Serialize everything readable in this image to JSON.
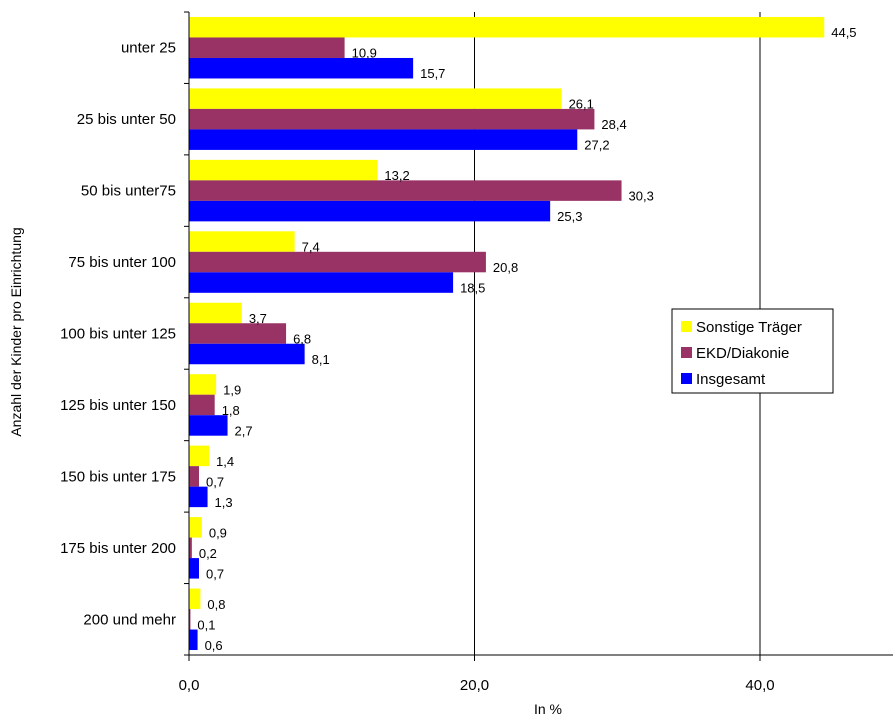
{
  "chart_data": {
    "type": "bar",
    "orientation": "horizontal",
    "categories": [
      "unter 25",
      "25 bis unter 50",
      "50 bis unter75",
      "75 bis unter 100",
      "100 bis unter 125",
      "125 bis unter 150",
      "150 bis unter 175",
      "175 bis unter 200",
      "200 und mehr"
    ],
    "series": [
      {
        "name": "Sonstige Träger",
        "color": "#ffff00",
        "values": [
          44.5,
          26.1,
          13.2,
          7.4,
          3.7,
          1.9,
          1.4,
          0.9,
          0.8
        ],
        "labels": [
          "44,5",
          "26,1",
          "13,2",
          "7,4",
          "3,7",
          "1,9",
          "1,4",
          "0,9",
          "0,8"
        ]
      },
      {
        "name": "EKD/Diakonie",
        "color": "#993366",
        "values": [
          10.9,
          28.4,
          30.3,
          20.8,
          6.8,
          1.8,
          0.7,
          0.2,
          0.1
        ],
        "labels": [
          "10,9",
          "28,4",
          "30,3",
          "20,8",
          "6,8",
          "1,8",
          "0,7",
          "0,2",
          "0,1"
        ]
      },
      {
        "name": "Insgesamt",
        "color": "#0000ff",
        "values": [
          15.7,
          27.2,
          25.3,
          18.5,
          8.1,
          2.7,
          1.3,
          0.7,
          0.6
        ],
        "labels": [
          "15,7",
          "27,2",
          "25,3",
          "18,5",
          "8,1",
          "2,7",
          "1,3",
          "0,7",
          "0,6"
        ]
      }
    ],
    "xlabel": "In %",
    "ylabel": "Anzahl der Kinder pro Einrichtung",
    "xlim": [
      0,
      40
    ],
    "xticks": [
      0,
      20,
      40
    ],
    "xtick_labels": [
      "0,0",
      "20,0",
      "40,0"
    ],
    "grid": "vertical",
    "legend_position": "right"
  }
}
